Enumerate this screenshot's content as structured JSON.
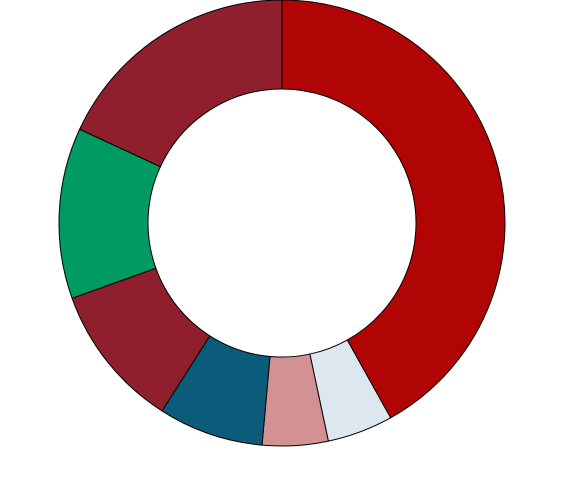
{
  "chart_data": {
    "type": "pie",
    "variant": "donut",
    "labels": [
      "",
      "",
      "",
      "",
      "",
      "",
      ""
    ],
    "values": [
      44,
      5,
      5,
      8,
      11,
      13,
      19
    ],
    "colors": [
      "#b10404",
      "#dde7ef",
      "#d39193",
      "#0b5b7b",
      "#8f1f2c",
      "#009b62",
      "#8f1f2c"
    ],
    "start_angle_deg": 0,
    "direction": "clockwise",
    "legend": "none",
    "title": ""
  }
}
